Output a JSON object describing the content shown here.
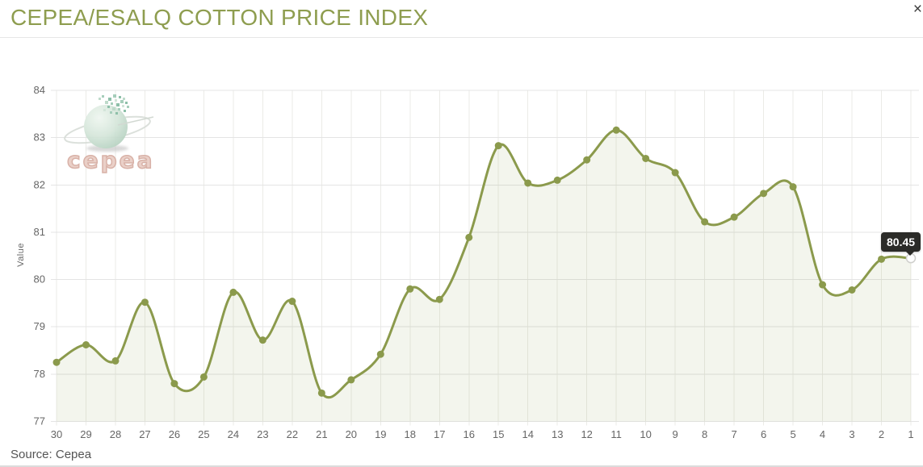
{
  "header": {
    "title": "CEPEA/ESALQ COTTON PRICE INDEX",
    "close_label": "×"
  },
  "logo": {
    "text": "cepea"
  },
  "tooltip": {
    "value": "80.45"
  },
  "source": "Source: Cepea",
  "colors": {
    "accent_title": "#8e9d4f",
    "line": "#8b9a4c",
    "area_fill": "rgba(139,154,76,0.10)",
    "grid_h": "#e4e4e4",
    "grid_v": "#ebebe7",
    "axis_text": "#666666",
    "tooltip_bg": "#2b2b28",
    "hover_marker_fill": "#ffffff",
    "hover_marker_stroke": "#cfcfcc"
  },
  "chart_data": {
    "type": "area",
    "title": "CEPEA/ESALQ COTTON PRICE INDEX",
    "xlabel": "",
    "ylabel": "Value",
    "ylim": [
      77,
      84
    ],
    "yticks": [
      77,
      78,
      79,
      80,
      81,
      82,
      83,
      84
    ],
    "grid": true,
    "legend": false,
    "categories": [
      "30",
      "29",
      "28",
      "27",
      "26",
      "25",
      "24",
      "23",
      "22",
      "21",
      "20",
      "19",
      "18",
      "17",
      "16",
      "15",
      "14",
      "13",
      "12",
      "11",
      "10",
      "9",
      "8",
      "7",
      "6",
      "5",
      "4",
      "3",
      "2",
      "1"
    ],
    "values": [
      78.25,
      78.62,
      78.28,
      79.52,
      77.8,
      77.94,
      79.73,
      78.72,
      79.54,
      77.6,
      77.88,
      78.42,
      79.8,
      79.58,
      80.89,
      82.83,
      82.04,
      82.1,
      82.53,
      83.16,
      82.56,
      82.26,
      81.22,
      81.32,
      81.82,
      81.96,
      79.89,
      79.78,
      80.43,
      80.45
    ],
    "hover_point": {
      "category": "1",
      "value": 80.45,
      "label": "80.45"
    }
  }
}
